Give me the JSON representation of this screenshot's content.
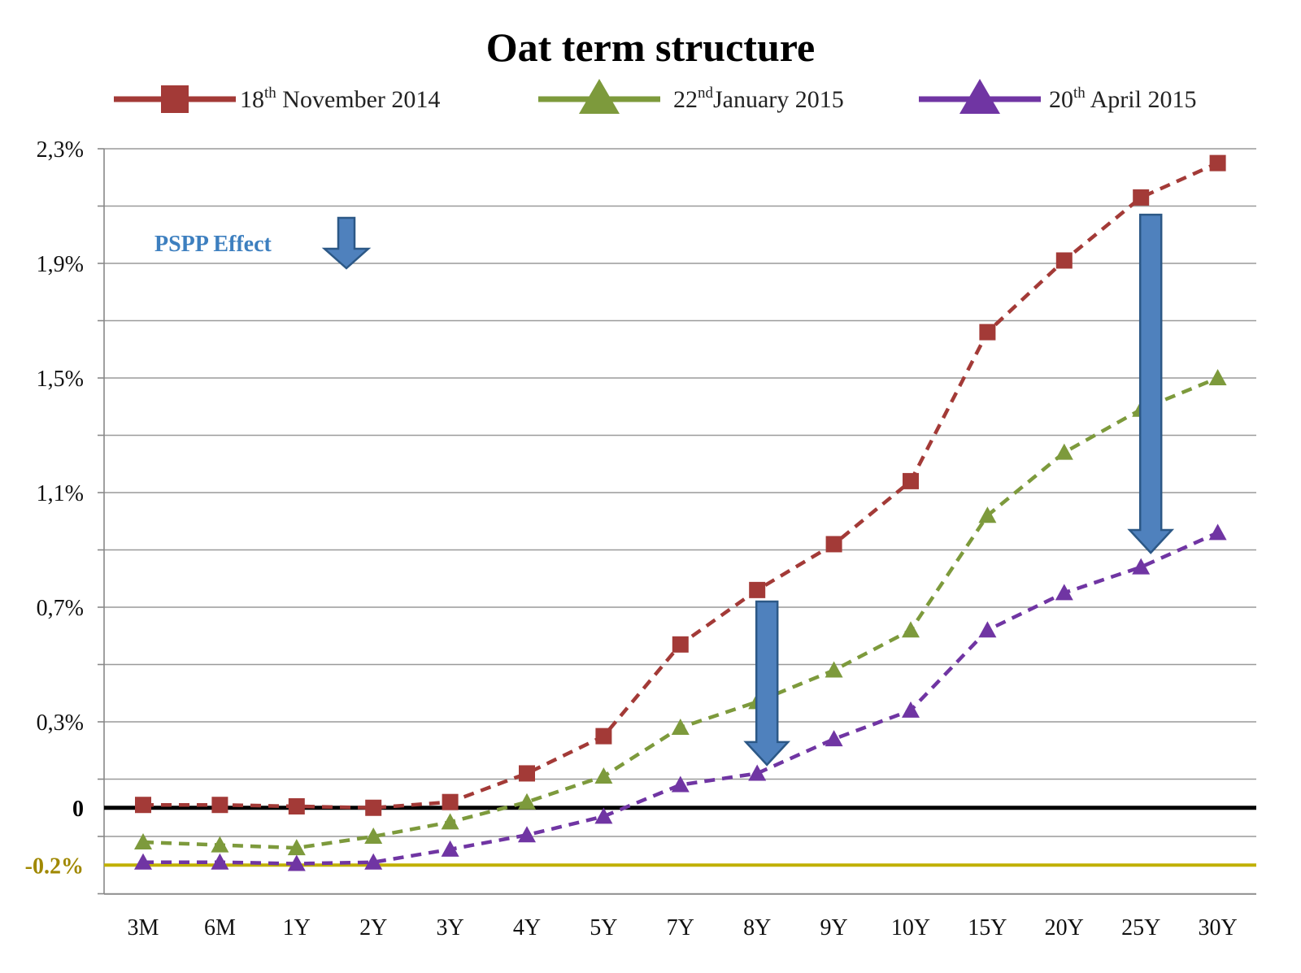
{
  "chart_data": {
    "type": "line",
    "title": "Oat term structure",
    "categories": [
      "3M",
      "6M",
      "1Y",
      "2Y",
      "3Y",
      "4Y",
      "5Y",
      "7Y",
      "8Y",
      "9Y",
      "10Y",
      "15Y",
      "20Y",
      "25Y",
      "30Y"
    ],
    "series": [
      {
        "name": "18th November 2014",
        "name_main": "18",
        "name_sup": "th",
        "name_rest": " November 2014",
        "color": "#a33a37",
        "marker": "square",
        "values": [
          0.01,
          0.01,
          0.005,
          0.0,
          0.02,
          0.12,
          0.25,
          0.57,
          0.76,
          0.92,
          1.14,
          1.66,
          1.91,
          2.13,
          2.25
        ]
      },
      {
        "name": "22nd January 2015",
        "name_main": "22",
        "name_sup": "nd",
        "name_rest": "January 2015",
        "color": "#7d9a3c",
        "marker": "triangle",
        "values": [
          -0.12,
          -0.13,
          -0.14,
          -0.1,
          -0.05,
          0.02,
          0.11,
          0.28,
          0.37,
          0.48,
          0.62,
          1.02,
          1.24,
          1.39,
          1.5
        ]
      },
      {
        "name": "20th April 2015",
        "name_main": "20",
        "name_sup": "th",
        "name_rest": " April 2015",
        "color": "#7035a3",
        "marker": "triangle",
        "values": [
          -0.19,
          -0.19,
          -0.195,
          -0.19,
          -0.145,
          -0.095,
          -0.03,
          0.08,
          0.12,
          0.24,
          0.34,
          0.62,
          0.75,
          0.84,
          0.96
        ]
      }
    ],
    "y_ticks": [
      {
        "value": 2.3,
        "label": "2,3%"
      },
      {
        "value": 1.9,
        "label": "1,9%"
      },
      {
        "value": 1.5,
        "label": "1,5%"
      },
      {
        "value": 1.1,
        "label": "1,1%"
      },
      {
        "value": 0.7,
        "label": "0,7%"
      },
      {
        "value": 0.3,
        "label": "0,3%"
      },
      {
        "value": 0.0,
        "label": "0"
      },
      {
        "value": -0.2,
        "label": "-0.2%"
      }
    ],
    "ylim": [
      -0.31,
      2.3
    ],
    "grid": true,
    "legend_placement": "top",
    "reference_lines": [
      {
        "value": 0.0,
        "color": "#000000"
      },
      {
        "value": -0.2,
        "color": "#c0b000"
      }
    ],
    "annotation": {
      "text": "PSPP Effect",
      "color": "#3d7fbf"
    },
    "arrows": [
      {
        "category": "8Y",
        "from": 0.72,
        "to": 0.15
      },
      {
        "category": "25Y",
        "from": 2.07,
        "to": 0.89
      }
    ]
  }
}
